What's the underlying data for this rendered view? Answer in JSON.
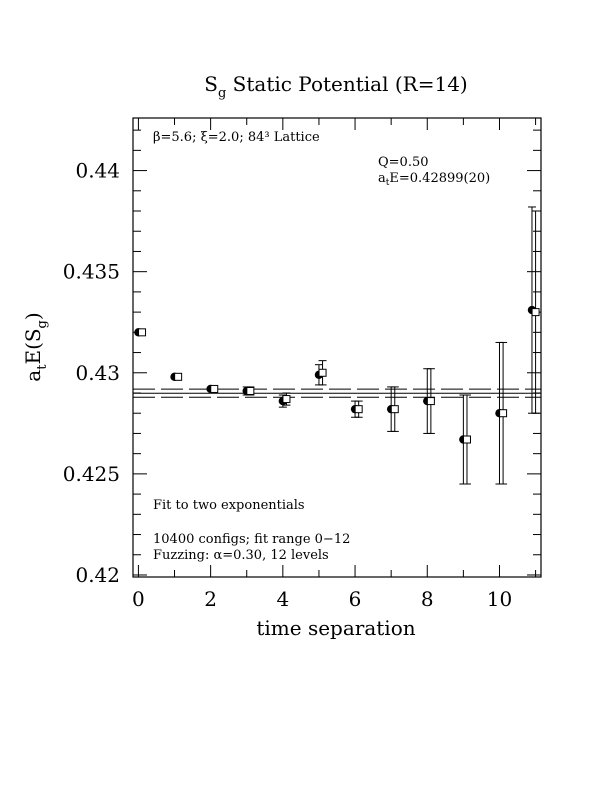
{
  "chart_data": {
    "type": "scatter",
    "title": {
      "prefix": "S",
      "prefix_sub": "g",
      "main": " Static Potential (R=14)"
    },
    "xlabel": "time separation",
    "ylabel": {
      "a": "a",
      "a_sub": "t",
      "mid": "E(S",
      "s_sub": "g",
      "end": ")"
    },
    "xlim": [
      -0.15,
      11.15
    ],
    "ylim": [
      0.4199,
      0.4426
    ],
    "xticks": [
      0,
      2,
      4,
      6,
      8,
      10
    ],
    "xtick_labels": [
      "0",
      "2",
      "4",
      "6",
      "8",
      "10"
    ],
    "yticks": [
      0.42,
      0.425,
      0.43,
      0.435,
      0.44
    ],
    "ytick_labels": [
      "0.42",
      "0.425",
      "0.43",
      "0.435",
      "0.44"
    ],
    "series": [
      {
        "name": "filled",
        "marker": "filled-circle",
        "points": [
          {
            "x": 0,
            "y": 0.432,
            "err": 0
          },
          {
            "x": 1,
            "y": 0.4298,
            "err": 0
          },
          {
            "x": 2,
            "y": 0.4292,
            "err": 0
          },
          {
            "x": 3,
            "y": 0.4291,
            "err": 0.0002
          },
          {
            "x": 4,
            "y": 0.4286,
            "err": 0.0003
          },
          {
            "x": 5,
            "y": 0.4299,
            "err": 0.0005
          },
          {
            "x": 6,
            "y": 0.4282,
            "err": 0.0004
          },
          {
            "x": 7,
            "y": 0.4282,
            "err": 0.0011
          },
          {
            "x": 8,
            "y": 0.4286,
            "err": 0.0016
          },
          {
            "x": 9,
            "y": 0.4267,
            "err": 0.0022
          },
          {
            "x": 10,
            "y": 0.428,
            "err": 0.0035
          },
          {
            "x": 10.9,
            "y": 0.4331,
            "err": 0.0051
          }
        ]
      },
      {
        "name": "open",
        "marker": "open-square",
        "points": [
          {
            "x": 0.1,
            "y": 0.432,
            "err": 0
          },
          {
            "x": 1.1,
            "y": 0.4298,
            "err": 0
          },
          {
            "x": 2.1,
            "y": 0.4292,
            "err": 0
          },
          {
            "x": 3.1,
            "y": 0.4291,
            "err": 0.0002
          },
          {
            "x": 4.1,
            "y": 0.4287,
            "err": 0.0003
          },
          {
            "x": 5.1,
            "y": 0.43,
            "err": 0.0006
          },
          {
            "x": 6.1,
            "y": 0.4282,
            "err": 0.0004
          },
          {
            "x": 7.1,
            "y": 0.4282,
            "err": 0.0011
          },
          {
            "x": 8.1,
            "y": 0.4286,
            "err": 0.0016
          },
          {
            "x": 9.1,
            "y": 0.4267,
            "err": 0.0022
          },
          {
            "x": 10.1,
            "y": 0.428,
            "err": 0.0035
          },
          {
            "x": 11.0,
            "y": 0.433,
            "err": 0.005
          }
        ]
      }
    ],
    "fit": {
      "value": 0.42899,
      "error": 0.0002
    },
    "annotations": {
      "lattice": "β=5.6; ξ=2.0; 84³ Lattice",
      "q": "Q=0.50",
      "ae_prefix": "a",
      "ae_sub": "t",
      "ae_value": "E=0.42899(20)",
      "fit_desc": "Fit to two exponentials",
      "configs": "10400 configs; fit range 0−12",
      "fuzzing": "Fuzzing: α=0.30, 12 levels"
    },
    "grid": false
  }
}
